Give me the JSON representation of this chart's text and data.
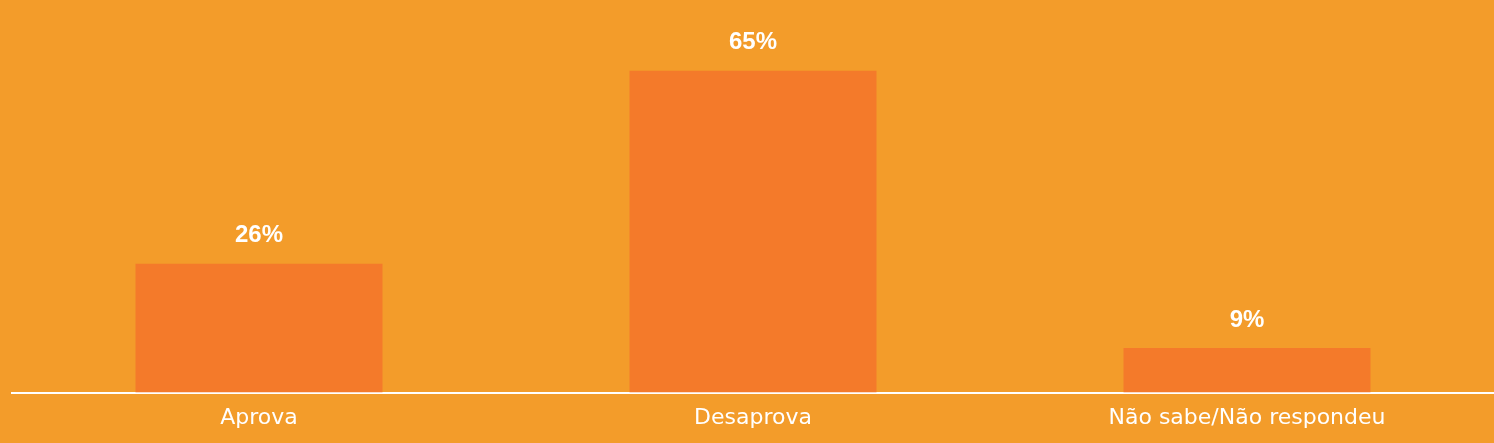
{
  "chart_data": {
    "type": "bar",
    "categories": [
      "Aprova",
      "Desaprova",
      "Não sabe/Não respondeu"
    ],
    "values": [
      26,
      65,
      9
    ],
    "value_labels": [
      "26%",
      "65%",
      "9%"
    ],
    "color": "#f47a2a",
    "grid": false,
    "legend": false,
    "tick_labels": "x"
  }
}
